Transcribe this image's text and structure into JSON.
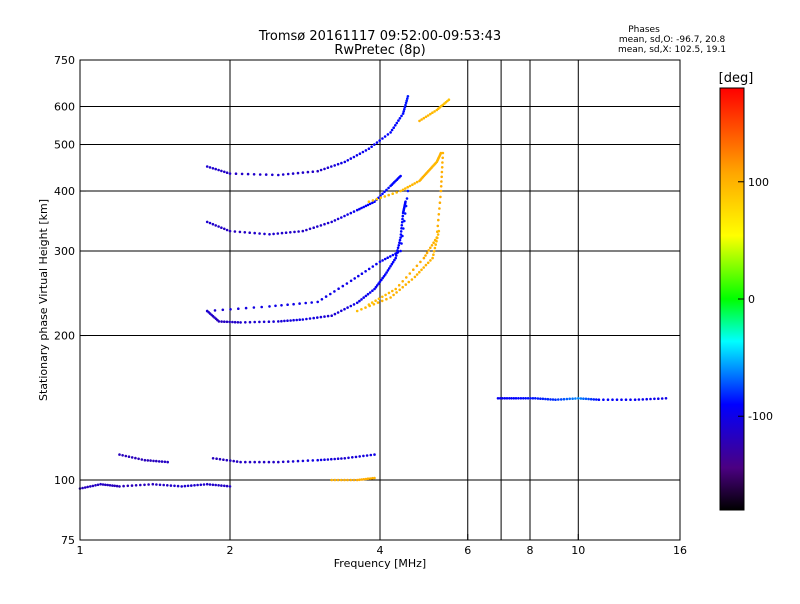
{
  "header": {
    "title_line1": "Tromsø 20161117 09:52:00-09:53:43",
    "title_line2": "RwPretec (8p)",
    "stats_title": "Phases",
    "stats_line1": "mean, sd,O: -96.7, 20.8",
    "stats_line2": "mean, sd,X: 102.5, 19.1"
  },
  "colorbar": {
    "label": "[deg]",
    "range": [
      -180,
      180
    ],
    "ticks": [
      {
        "value": 100,
        "label": "100"
      },
      {
        "value": 0,
        "label": "0"
      },
      {
        "value": -100,
        "label": "-100"
      }
    ]
  },
  "chart_data": {
    "type": "scatter",
    "xlabel": "Frequency [MHz]",
    "ylabel": "Stationary phase Virtual Height [km]",
    "xscale": "log",
    "yscale": "log",
    "xlim": [
      1,
      16
    ],
    "ylim": [
      75,
      750
    ],
    "xticks": [
      {
        "value": 1,
        "label": "1"
      },
      {
        "value": 2,
        "label": "2"
      },
      {
        "value": 4,
        "label": "4"
      },
      {
        "value": 6,
        "label": "6"
      },
      {
        "value": 8,
        "label": "8"
      },
      {
        "value": 10,
        "label": "10"
      },
      {
        "value": 16,
        "label": "16"
      }
    ],
    "xgrid": [
      2,
      4,
      6,
      7,
      8,
      10
    ],
    "yticks": [
      {
        "value": 75,
        "label": "75"
      },
      {
        "value": 100,
        "label": "100"
      },
      {
        "value": 200,
        "label": "200"
      },
      {
        "value": 300,
        "label": "300"
      },
      {
        "value": 400,
        "label": "400"
      },
      {
        "value": 500,
        "label": "500"
      },
      {
        "value": 600,
        "label": "600"
      },
      {
        "value": 750,
        "label": "750"
      }
    ],
    "ygrid": [
      100,
      200,
      300,
      400,
      500,
      600
    ],
    "grid": true,
    "color_by": "phase [deg]",
    "traces": [
      {
        "points": [
          [
            1.0,
            96,
            -118
          ],
          [
            1.1,
            98,
            -115
          ],
          [
            1.2,
            97,
            -120
          ],
          [
            1.4,
            98,
            -118
          ],
          [
            1.6,
            97,
            -110
          ],
          [
            1.8,
            98,
            -112
          ],
          [
            2.0,
            97,
            -115
          ]
        ]
      },
      {
        "points": [
          [
            1.2,
            113,
            -118
          ],
          [
            1.35,
            110,
            -120
          ],
          [
            1.5,
            109,
            -115
          ]
        ]
      },
      {
        "points": [
          [
            1.85,
            111,
            -118
          ],
          [
            2.1,
            109,
            -115
          ],
          [
            2.5,
            109,
            -115
          ],
          [
            3.0,
            110,
            -100
          ],
          [
            3.4,
            111,
            -110
          ],
          [
            3.9,
            113,
            -100
          ]
        ]
      },
      {
        "points": [
          [
            1.8,
            225,
            -110
          ],
          [
            1.9,
            214,
            -118
          ],
          [
            2.1,
            213,
            -112
          ],
          [
            2.5,
            214,
            -108
          ],
          [
            2.8,
            216,
            -100
          ],
          [
            3.2,
            220,
            -110
          ],
          [
            3.6,
            234,
            -100
          ],
          [
            3.9,
            250,
            -95
          ],
          [
            4.1,
            268,
            -90
          ],
          [
            4.3,
            290,
            -92
          ],
          [
            4.4,
            320,
            -90
          ],
          [
            4.45,
            360,
            -88
          ],
          [
            4.5,
            380,
            -90
          ]
        ]
      },
      {
        "points": [
          [
            1.8,
            225,
            -110
          ],
          [
            2.4,
            230,
            -100
          ],
          [
            3.0,
            235,
            -100
          ],
          [
            3.5,
            260,
            -100
          ],
          [
            4.0,
            285,
            -95
          ],
          [
            4.4,
            300,
            -90
          ],
          [
            4.55,
            400,
            -85
          ]
        ]
      },
      {
        "points": [
          [
            3.8,
            232,
            90
          ],
          [
            4.3,
            250,
            100
          ],
          [
            4.9,
            290,
            105
          ],
          [
            5.2,
            320,
            100
          ],
          [
            5.3,
            400,
            105
          ],
          [
            5.35,
            480,
            100
          ]
        ]
      },
      {
        "points": [
          [
            3.6,
            225,
            95
          ],
          [
            4.2,
            240,
            100
          ],
          [
            4.7,
            265,
            100
          ],
          [
            5.1,
            290,
            100
          ],
          [
            5.25,
            330,
            95
          ]
        ]
      },
      {
        "points": [
          [
            1.8,
            345,
            -110
          ],
          [
            2.0,
            330,
            -118
          ],
          [
            2.4,
            325,
            -110
          ],
          [
            2.8,
            330,
            -115
          ],
          [
            3.2,
            345,
            -110
          ],
          [
            3.6,
            365,
            -95
          ],
          [
            3.9,
            380,
            -90
          ],
          [
            4.2,
            410,
            -88
          ],
          [
            4.4,
            430,
            -90
          ]
        ]
      },
      {
        "points": [
          [
            3.8,
            380,
            90
          ],
          [
            4.4,
            400,
            95
          ],
          [
            4.8,
            420,
            100
          ],
          [
            5.0,
            440,
            100
          ],
          [
            5.2,
            460,
            95
          ],
          [
            5.3,
            480,
            100
          ]
        ]
      },
      {
        "points": [
          [
            1.8,
            450,
            -110
          ],
          [
            2.0,
            435,
            -115
          ],
          [
            2.5,
            432,
            -110
          ],
          [
            3.0,
            440,
            -115
          ],
          [
            3.4,
            460,
            -100
          ],
          [
            3.8,
            490,
            -95
          ],
          [
            4.2,
            530,
            -90
          ],
          [
            4.45,
            580,
            -88
          ],
          [
            4.55,
            630,
            -85
          ]
        ]
      },
      {
        "points": [
          [
            4.8,
            560,
            100
          ],
          [
            5.2,
            590,
            95
          ],
          [
            5.5,
            620,
            90
          ]
        ]
      },
      {
        "points": [
          [
            6.9,
            148,
            -95
          ],
          [
            7.5,
            148,
            -90
          ],
          [
            8.2,
            148,
            -85
          ],
          [
            9.0,
            147,
            -80
          ],
          [
            10.0,
            148,
            -60
          ],
          [
            11.0,
            147,
            -90
          ],
          [
            13.0,
            147,
            -95
          ],
          [
            15.0,
            148,
            -100
          ]
        ]
      },
      {
        "points": [
          [
            3.2,
            100,
            100
          ],
          [
            3.6,
            100,
            105
          ],
          [
            3.9,
            101,
            100
          ]
        ]
      }
    ]
  }
}
